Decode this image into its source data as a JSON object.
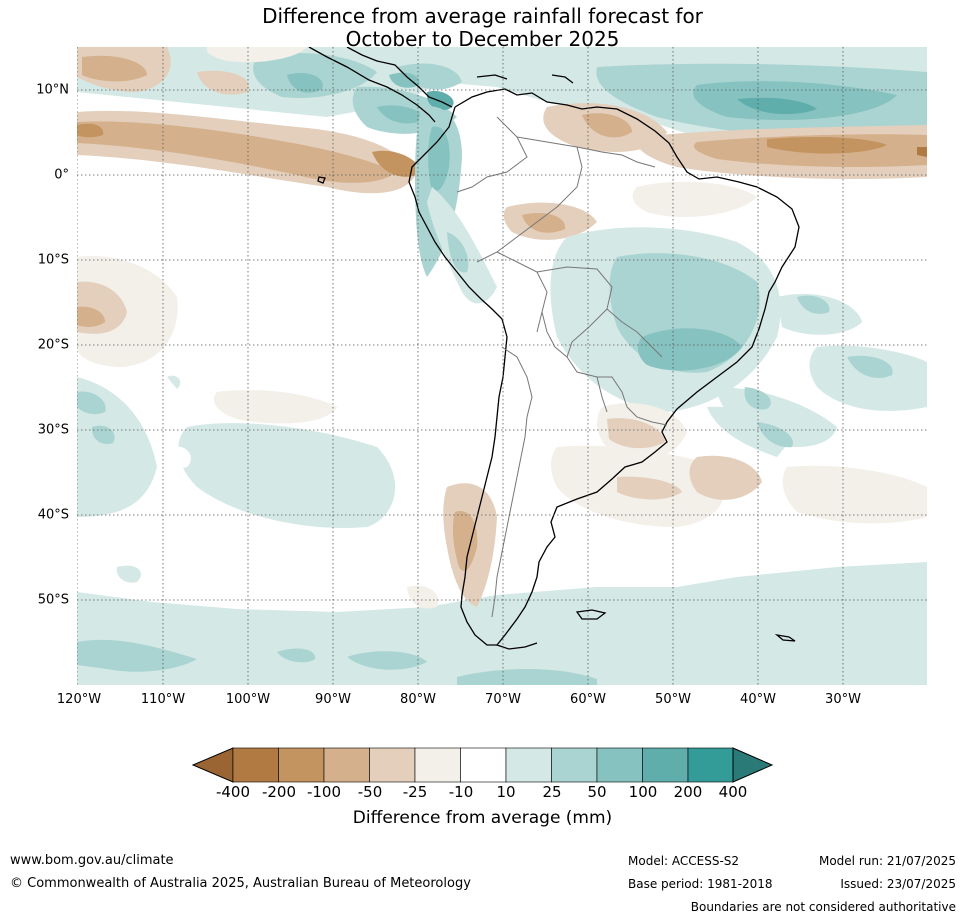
{
  "title": [
    "Difference from average rainfall forecast for",
    "October to December 2025"
  ],
  "map": {
    "lat_labels": [
      "10°N",
      "0°",
      "10°S",
      "20°S",
      "30°S",
      "40°S",
      "50°S"
    ],
    "lon_labels": [
      "120°W",
      "110°W",
      "100°W",
      "90°W",
      "80°W",
      "70°W",
      "60°W",
      "50°W",
      "40°W",
      "30°W"
    ]
  },
  "colorbar": {
    "label": "Difference from average (mm)",
    "ticks": [
      "-400",
      "-200",
      "-100",
      "-50",
      "-25",
      "-10",
      "10",
      "25",
      "50",
      "100",
      "200",
      "400"
    ],
    "colors": {
      "below_min": "#9a6532",
      "bins": [
        "#b07a42",
        "#c3945f",
        "#d4b08c",
        "#e3cfbc",
        "#f3efe9",
        "#ffffff",
        "#d4e8e6",
        "#aad4d2",
        "#86c2c0",
        "#5faeab",
        "#339b98"
      ],
      "above_max": "#2a7a78"
    }
  },
  "footer": {
    "website": "www.bom.gov.au/climate",
    "copyright": "© Commonwealth of Australia 2025, Australian Bureau of Meteorology",
    "model": "Model: ACCESS-S2",
    "base_period": "Base period: 1981-2018",
    "model_run": "Model run: 21/07/2025",
    "issued": "Issued: 23/07/2025",
    "disclaimer": "Boundaries are not considered authoritative"
  }
}
